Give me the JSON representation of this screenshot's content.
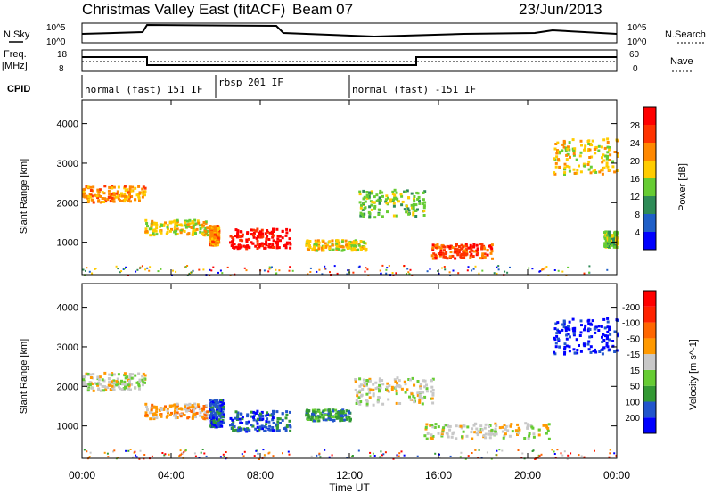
{
  "header": {
    "title": "Christmas Valley East (fitACF)",
    "beam": "Beam 07",
    "date": "23/Jun/2013"
  },
  "nsky_panel": {
    "left_label": "N.Sky",
    "right_label": "N.Search",
    "left_ticks": [
      "10^5",
      "10^0"
    ],
    "right_ticks": [
      "10^5",
      "10^0"
    ]
  },
  "freq_panel": {
    "left_label_1": "Freq.",
    "left_label_2": "[MHz]",
    "right_label": "Nave",
    "left_ticks": [
      "18",
      "8"
    ],
    "right_ticks": [
      "60",
      "0"
    ]
  },
  "cpid": {
    "label": "CPID",
    "segments": [
      {
        "text": "normal (fast) 151 IF",
        "start_hour": 0,
        "end_hour": 6
      },
      {
        "text": "rbsp 201 IF",
        "start_hour": 6,
        "end_hour": 12
      },
      {
        "text": "normal (fast) -151 IF",
        "start_hour": 12,
        "end_hour": 24
      }
    ]
  },
  "x_axis": {
    "label": "Time UT",
    "ticks": [
      "00:00",
      "04:00",
      "08:00",
      "12:00",
      "16:00",
      "20:00",
      "00:00"
    ]
  },
  "chart_data": [
    {
      "type": "heatmap",
      "title": "",
      "xlabel": "Time UT",
      "ylabel": "Slant Range [km]",
      "xlim": [
        0,
        24
      ],
      "ylim": [
        180,
        4600
      ],
      "yticks": [
        "1000",
        "2000",
        "3000",
        "4000"
      ],
      "colorbar": {
        "label": "Power [dB]",
        "ticks": [
          "4",
          "8",
          "12",
          "16",
          "20",
          "24",
          "28"
        ],
        "colors": [
          "#0000ff",
          "#1f5fc8",
          "#2e8b57",
          "#66cc33",
          "#ffcc00",
          "#ff8800",
          "#ff3300",
          "#ff0000"
        ]
      },
      "blobs": [
        {
          "t0": 0.0,
          "t1": 2.8,
          "r_center": 2250,
          "r_width": 420,
          "level": 5
        },
        {
          "t0": 2.8,
          "t1": 5.6,
          "r_center": 1400,
          "r_width": 380,
          "level": 4
        },
        {
          "t0": 5.7,
          "t1": 6.1,
          "r_center": 1200,
          "r_width": 500,
          "level": 5
        },
        {
          "t0": 6.6,
          "t1": 9.3,
          "r_center": 1120,
          "r_width": 500,
          "level": 7
        },
        {
          "t0": 10.0,
          "t1": 12.7,
          "r_center": 950,
          "r_width": 260,
          "level": 4
        },
        {
          "t0": 12.4,
          "t1": 15.4,
          "r_center": 2000,
          "r_width": 700,
          "level": 3
        },
        {
          "t0": 15.6,
          "t1": 18.4,
          "r_center": 800,
          "r_width": 380,
          "level": 6
        },
        {
          "t0": 21.1,
          "t1": 24.0,
          "r_center": 3200,
          "r_width": 900,
          "level": 4
        },
        {
          "t0": 23.4,
          "t1": 24.0,
          "r_center": 1100,
          "r_width": 400,
          "level": 3
        }
      ]
    },
    {
      "type": "heatmap",
      "title": "",
      "xlabel": "Time UT",
      "ylabel": "Slant Range [km]",
      "xlim": [
        0,
        24
      ],
      "ylim": [
        180,
        4600
      ],
      "yticks": [
        "1000",
        "2000",
        "3000",
        "4000"
      ],
      "colorbar": {
        "label": "Velocity [m s^-1]",
        "ticks": [
          "200",
          "100",
          "50",
          "15",
          "-15",
          "-50",
          "-100",
          "-200"
        ],
        "colors": [
          "#0000ff",
          "#2255cc",
          "#339933",
          "#66cc33",
          "#c8c8c8",
          "#ff9900",
          "#ff6600",
          "#ff2200",
          "#ff0000"
        ]
      },
      "blobs": [
        {
          "t0": 0.0,
          "t1": 2.8,
          "r_center": 2150,
          "r_width": 460,
          "level": 4
        },
        {
          "t0": 2.8,
          "t1": 5.6,
          "r_center": 1400,
          "r_width": 380,
          "level": 5
        },
        {
          "t0": 5.7,
          "t1": 6.3,
          "r_center": 1350,
          "r_width": 700,
          "level": 1
        },
        {
          "t0": 6.6,
          "t1": 9.3,
          "r_center": 1150,
          "r_width": 520,
          "level": 1
        },
        {
          "t0": 10.0,
          "t1": 12.0,
          "r_center": 1300,
          "r_width": 280,
          "level": 2
        },
        {
          "t0": 12.2,
          "t1": 15.8,
          "r_center": 1900,
          "r_width": 700,
          "level": 4
        },
        {
          "t0": 15.2,
          "t1": 21.0,
          "r_center": 900,
          "r_width": 400,
          "level": 4
        },
        {
          "t0": 21.1,
          "t1": 24.0,
          "r_center": 3300,
          "r_width": 900,
          "level": 0
        }
      ]
    }
  ]
}
